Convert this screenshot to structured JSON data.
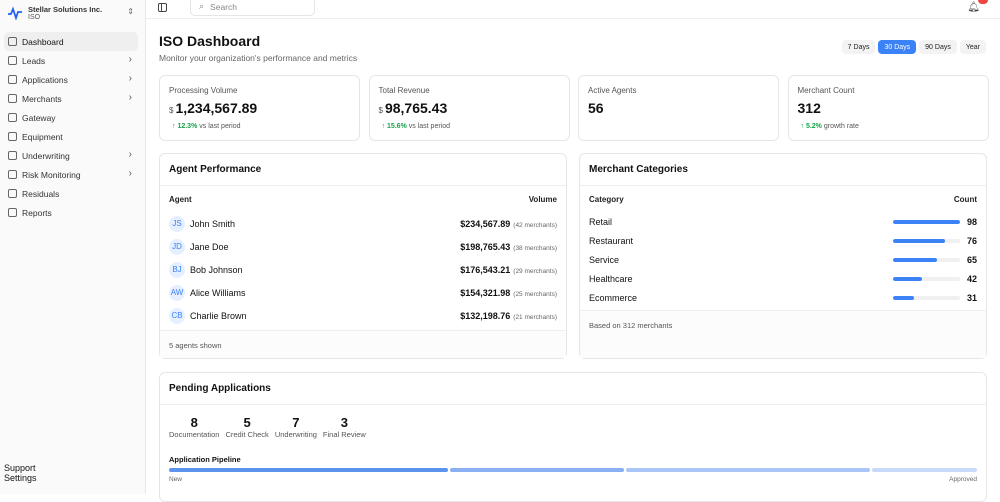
{
  "org": {
    "name": "Stellar Solutions Inc.",
    "type": "ISO"
  },
  "nav": [
    {
      "label": "Dashboard",
      "icon": "home-icon",
      "active": true,
      "chevron": false
    },
    {
      "label": "Leads",
      "icon": "users-icon",
      "chevron": true
    },
    {
      "label": "Applications",
      "icon": "file-icon",
      "chevron": true
    },
    {
      "label": "Merchants",
      "icon": "store-icon",
      "chevron": true
    },
    {
      "label": "Gateway",
      "icon": "credit-card-icon",
      "chevron": false
    },
    {
      "label": "Equipment",
      "icon": "box-icon",
      "chevron": false
    },
    {
      "label": "Underwriting",
      "icon": "clipboard-icon",
      "chevron": true
    },
    {
      "label": "Risk Monitoring",
      "icon": "shield-icon",
      "chevron": true
    },
    {
      "label": "Residuals",
      "icon": "wallet-icon",
      "chevron": false
    },
    {
      "label": "Reports",
      "icon": "chart-icon",
      "chevron": false
    }
  ],
  "nav_bottom": [
    {
      "label": "Support",
      "icon": "help-icon"
    },
    {
      "label": "Settings",
      "icon": "gear-icon"
    }
  ],
  "search": {
    "placeholder": "Search"
  },
  "header": {
    "title": "ISO Dashboard",
    "subtitle": "Monitor your organization's performance and metrics"
  },
  "ranges": [
    {
      "label": "7 Days"
    },
    {
      "label": "30 Days",
      "active": true
    },
    {
      "label": "90 Days"
    },
    {
      "label": "Year"
    }
  ],
  "accent": "#3b82f6",
  "stats": [
    {
      "label": "Processing Volume",
      "currency": "$",
      "value": "1,234,567.89",
      "change": "12.3%",
      "change_text": "vs last period"
    },
    {
      "label": "Total Revenue",
      "currency": "$",
      "value": "98,765.43",
      "change": "15.6%",
      "change_text": "vs last period"
    },
    {
      "label": "Active Agents",
      "value": "56"
    },
    {
      "label": "Merchant Count",
      "value": "312",
      "change": "5.2%",
      "change_text": "growth rate"
    }
  ],
  "agents": {
    "title": "Agent Performance",
    "col_agent": "Agent",
    "col_volume": "Volume",
    "rows": [
      {
        "initials": "JS",
        "name": "John Smith",
        "volume": "$234,567.89",
        "merchants": "(42 merchants)"
      },
      {
        "initials": "JD",
        "name": "Jane Doe",
        "volume": "$198,765.43",
        "merchants": "(38 merchants)"
      },
      {
        "initials": "BJ",
        "name": "Bob Johnson",
        "volume": "$176,543.21",
        "merchants": "(29 merchants)"
      },
      {
        "initials": "AW",
        "name": "Alice Williams",
        "volume": "$154,321.98",
        "merchants": "(25 merchants)"
      },
      {
        "initials": "CB",
        "name": "Charlie Brown",
        "volume": "$132,198.76",
        "merchants": "(21 merchants)"
      }
    ],
    "footer": "5 agents shown"
  },
  "categories": {
    "title": "Merchant Categories",
    "col_category": "Category",
    "col_count": "Count",
    "rows": [
      {
        "name": "Retail",
        "count": 98
      },
      {
        "name": "Restaurant",
        "count": 76
      },
      {
        "name": "Service",
        "count": 65
      },
      {
        "name": "Healthcare",
        "count": 42
      },
      {
        "name": "Ecommerce",
        "count": 31
      }
    ],
    "footer": "Based on 312 merchants"
  },
  "pending": {
    "title": "Pending Applications",
    "stages": [
      {
        "count": "8",
        "label": "Documentation"
      },
      {
        "count": "5",
        "label": "Credit Check"
      },
      {
        "count": "7",
        "label": "Underwriting"
      },
      {
        "count": "3",
        "label": "Final Review"
      }
    ],
    "pipeline_label": "Application Pipeline",
    "start": "New",
    "end": "Approved",
    "pipeline_colors": [
      "#5b93ee",
      "#88b0f2",
      "#a9c6f6",
      "#c8daf9"
    ]
  }
}
